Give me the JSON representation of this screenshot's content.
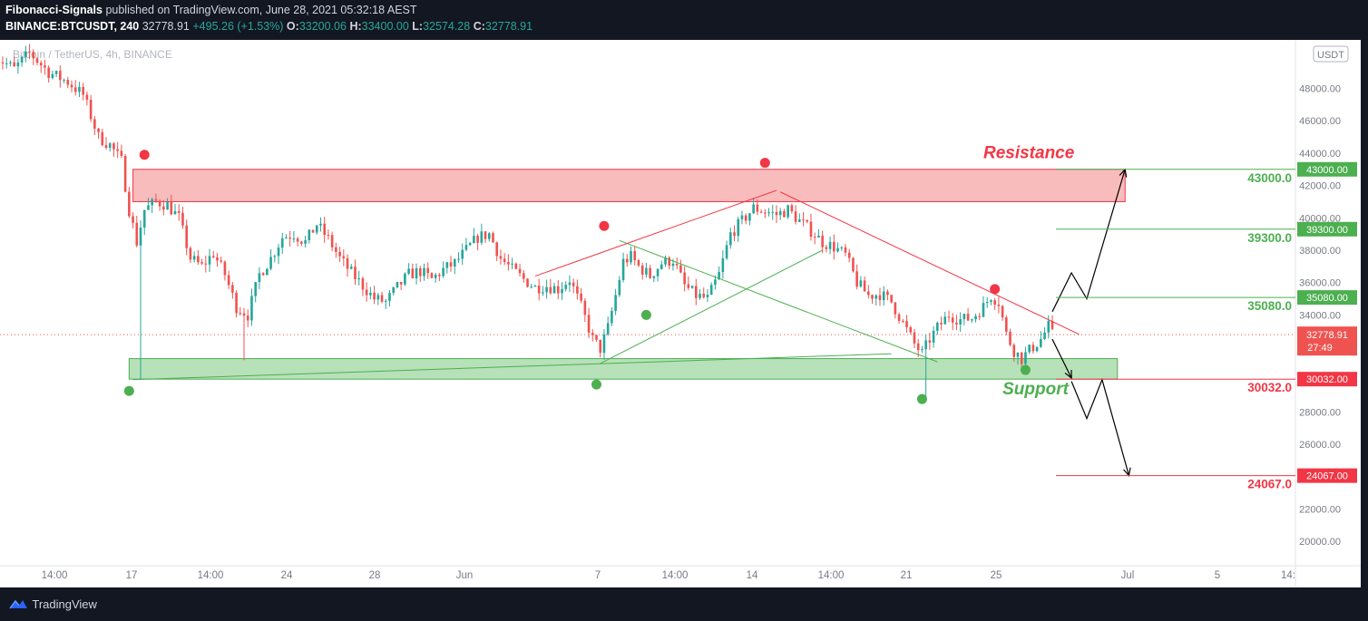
{
  "header": {
    "author": "Fibonacci-Signals",
    "published": "published on TradingView.com, June 28, 2021 05:32:18 AEST",
    "symbol": "BINANCE:BTCUSDT, 240",
    "last": "32778.91",
    "change": "+495.26 (+1.53%)",
    "o_label": "O:",
    "o": "33200.06",
    "h_label": "H:",
    "h": "33400.00",
    "l_label": "L:",
    "l": "32574.28",
    "c_label": "C:",
    "c": "32778.91"
  },
  "watermark": "Bitcoin / TetherUS, 4h, BINANCE",
  "footer": {
    "brand": "TradingView"
  },
  "colors": {
    "background": "#ffffff",
    "up": "#26a69a",
    "down": "#ef5350",
    "support": "#4caf50",
    "resistance": "#f23645",
    "resistance_zone": "#f8bcbc",
    "support_zone": "#b7e1b9"
  },
  "chart_data": {
    "type": "candlestick",
    "timeframe": "4h",
    "currency": "USDT",
    "ylim": [
      18500,
      51000
    ],
    "y_ticks": [
      "48000.00",
      "46000.00",
      "44000.00",
      "42000.00",
      "40000.00",
      "38000.00",
      "36000.00",
      "34000.00",
      "28000.00",
      "26000.00",
      "22000.00",
      "20000.00"
    ],
    "x_ticks": [
      "14:00",
      "17",
      "14:00",
      "24",
      "28",
      "Jun",
      "7",
      "14:00",
      "14",
      "14:00",
      "21",
      "25",
      "Jul",
      "5",
      "14:"
    ],
    "current_price": {
      "value": 32778.91,
      "label": "32778.91",
      "countdown": "27:49"
    },
    "zones": [
      {
        "name": "Resistance",
        "from": 41000,
        "to": 43000
      },
      {
        "name": "Support",
        "from": 30032,
        "to": 31300
      }
    ],
    "levels": [
      {
        "value": 43000,
        "label": "43000.0",
        "tag": "43000.00",
        "side": "up"
      },
      {
        "value": 39300,
        "label": "39300.0",
        "tag": "39300.00",
        "side": "up"
      },
      {
        "value": 35080,
        "label": "35080.0",
        "tag": "35080.00",
        "side": "up"
      },
      {
        "value": 30032,
        "label": "30032.0",
        "tag": "30032.00",
        "side": "down"
      },
      {
        "value": 24067,
        "label": "24067.0",
        "tag": "24067.00",
        "side": "down"
      }
    ],
    "annotations": [
      {
        "text": "Resistance",
        "color": "resistance"
      },
      {
        "text": "Support",
        "color": "support"
      }
    ],
    "scenario_up": [
      {
        "time": "Jun 28 00:00",
        "price": 34200
      },
      {
        "time": "Jun 28 20:00",
        "price": 36600
      },
      {
        "time": "Jun 29 12:00",
        "price": 35000
      },
      {
        "time": "Jul 1 04:00",
        "price": 43000
      }
    ],
    "scenario_down": [
      {
        "time": "Jun 28 00:00",
        "price": 32500
      },
      {
        "time": "Jun 28 20:00",
        "price": 29900
      },
      {
        "time": "Jun 29 12:00",
        "price": 27600
      },
      {
        "time": "Jun 30 04:00",
        "price": 30000
      },
      {
        "time": "Jul 1 08:00",
        "price": 24067
      }
    ],
    "trendlines": [
      {
        "color": "support",
        "from": {
          "time": "May 19 00:00",
          "price": 30000
        },
        "to": {
          "time": "Jun 21 00:00",
          "price": 31600
        }
      },
      {
        "color": "support",
        "from": {
          "time": "Jun 8 08:00",
          "price": 31000
        },
        "to": {
          "time": "Jun 18 00:00",
          "price": 38000
        }
      },
      {
        "color": "support",
        "from": {
          "time": "Jun 9 04:00",
          "price": 38600
        },
        "to": {
          "time": "Jun 23 00:00",
          "price": 31100
        }
      },
      {
        "color": "resistance",
        "from": {
          "time": "Jun 5 12:00",
          "price": 36400
        },
        "to": {
          "time": "Jun 16 00:00",
          "price": 41700
        }
      },
      {
        "color": "resistance",
        "from": {
          "time": "Jun 16 04:00",
          "price": 41600
        },
        "to": {
          "time": "Jun 29 04:00",
          "price": 32800
        }
      }
    ],
    "pivot_highs": [
      {
        "time": "May 19 12:00",
        "price": 43900
      },
      {
        "time": "Jun 8 12:00",
        "price": 39500
      },
      {
        "time": "Jun 15 12:00",
        "price": 43400
      },
      {
        "time": "Jun 25 12:00",
        "price": 35600
      }
    ],
    "pivot_lows": [
      {
        "time": "May 18 20:00",
        "price": 29300
      },
      {
        "time": "Jun 8 04:00",
        "price": 29700
      },
      {
        "time": "Jun 10 08:00",
        "price": 34000
      },
      {
        "time": "Jun 22 08:00",
        "price": 28800
      },
      {
        "time": "Jun 26 20:00",
        "price": 30600
      }
    ],
    "path": [
      {
        "time": "May 13 00:00",
        "price": 50000
      },
      {
        "time": "May 13 20:00",
        "price": 49200
      },
      {
        "time": "May 14 12:00",
        "price": 50200
      },
      {
        "time": "May 15 08:00",
        "price": 49000
      },
      {
        "time": "May 16 04:00",
        "price": 48400
      },
      {
        "time": "May 16 20:00",
        "price": 47600
      },
      {
        "time": "May 17 12:00",
        "price": 45000
      },
      {
        "time": "May 18 00:00",
        "price": 44500
      },
      {
        "time": "May 18 12:00",
        "price": 43500
      },
      {
        "time": "May 18 20:00",
        "price": 40500
      },
      {
        "time": "May 19 04:00",
        "price": 38500
      },
      {
        "time": "May 19 12:00",
        "price": 40500
      },
      {
        "time": "May 20 00:00",
        "price": 41000
      },
      {
        "time": "May 20 12:00",
        "price": 40800
      },
      {
        "time": "May 21 00:00",
        "price": 40000
      },
      {
        "time": "May 21 12:00",
        "price": 37500
      },
      {
        "time": "May 22 00:00",
        "price": 37000
      },
      {
        "time": "May 22 12:00",
        "price": 37800
      },
      {
        "time": "May 23 00:00",
        "price": 36500
      },
      {
        "time": "May 23 12:00",
        "price": 34500
      },
      {
        "time": "May 24 00:00",
        "price": 34000
      },
      {
        "time": "May 24 12:00",
        "price": 36500
      },
      {
        "time": "May 25 00:00",
        "price": 37500
      },
      {
        "time": "May 25 12:00",
        "price": 38800
      },
      {
        "time": "May 26 00:00",
        "price": 39000
      },
      {
        "time": "May 26 12:00",
        "price": 38500
      },
      {
        "time": "May 27 00:00",
        "price": 39600
      },
      {
        "time": "May 27 12:00",
        "price": 38700
      },
      {
        "time": "May 28 00:00",
        "price": 37500
      },
      {
        "time": "May 28 12:00",
        "price": 36600
      },
      {
        "time": "May 29 00:00",
        "price": 35800
      },
      {
        "time": "May 29 12:00",
        "price": 35000
      },
      {
        "time": "May 30 00:00",
        "price": 34800
      },
      {
        "time": "May 30 12:00",
        "price": 35700
      },
      {
        "time": "May 31 00:00",
        "price": 36500
      },
      {
        "time": "May 31 12:00",
        "price": 36700
      },
      {
        "time": "Jun 1 00:00",
        "price": 36200
      },
      {
        "time": "Jun 1 12:00",
        "price": 36800
      },
      {
        "time": "Jun 2 00:00",
        "price": 37200
      },
      {
        "time": "Jun 2 12:00",
        "price": 38000
      },
      {
        "time": "Jun 3 00:00",
        "price": 38800
      },
      {
        "time": "Jun 3 12:00",
        "price": 39000
      },
      {
        "time": "Jun 4 00:00",
        "price": 37500
      },
      {
        "time": "Jun 4 12:00",
        "price": 36800
      },
      {
        "time": "Jun 5 00:00",
        "price": 36200
      },
      {
        "time": "Jun 5 12:00",
        "price": 35700
      },
      {
        "time": "Jun 6 00:00",
        "price": 35800
      },
      {
        "time": "Jun 6 12:00",
        "price": 35600
      },
      {
        "time": "Jun 7 00:00",
        "price": 36200
      },
      {
        "time": "Jun 7 12:00",
        "price": 34500
      },
      {
        "time": "Jun 8 00:00",
        "price": 32500
      },
      {
        "time": "Jun 8 08:00",
        "price": 31900
      },
      {
        "time": "Jun 8 16:00",
        "price": 33200
      },
      {
        "time": "Jun 9 00:00",
        "price": 35200
      },
      {
        "time": "Jun 9 08:00",
        "price": 37300
      },
      {
        "time": "Jun 9 16:00",
        "price": 37600
      },
      {
        "time": "Jun 10 00:00",
        "price": 37000
      },
      {
        "time": "Jun 10 12:00",
        "price": 36400
      },
      {
        "time": "Jun 11 00:00",
        "price": 37200
      },
      {
        "time": "Jun 11 12:00",
        "price": 37400
      },
      {
        "time": "Jun 12 00:00",
        "price": 35800
      },
      {
        "time": "Jun 12 12:00",
        "price": 35200
      },
      {
        "time": "Jun 13 00:00",
        "price": 35000
      },
      {
        "time": "Jun 13 12:00",
        "price": 36500
      },
      {
        "time": "Jun 14 00:00",
        "price": 39000
      },
      {
        "time": "Jun 14 12:00",
        "price": 39800
      },
      {
        "time": "Jun 15 00:00",
        "price": 40600
      },
      {
        "time": "Jun 15 12:00",
        "price": 40400
      },
      {
        "time": "Jun 16 00:00",
        "price": 40200
      },
      {
        "time": "Jun 16 12:00",
        "price": 40500
      },
      {
        "time": "Jun 17 00:00",
        "price": 39800
      },
      {
        "time": "Jun 17 12:00",
        "price": 39200
      },
      {
        "time": "Jun 18 00:00",
        "price": 38500
      },
      {
        "time": "Jun 18 12:00",
        "price": 38200
      },
      {
        "time": "Jun 19 00:00",
        "price": 37700
      },
      {
        "time": "Jun 19 12:00",
        "price": 36000
      },
      {
        "time": "Jun 20 00:00",
        "price": 35200
      },
      {
        "time": "Jun 20 12:00",
        "price": 35300
      },
      {
        "time": "Jun 21 00:00",
        "price": 34800
      },
      {
        "time": "Jun 21 12:00",
        "price": 33500
      },
      {
        "time": "Jun 22 00:00",
        "price": 32200
      },
      {
        "time": "Jun 22 08:00",
        "price": 31600
      },
      {
        "time": "Jun 22 16:00",
        "price": 32500
      },
      {
        "time": "Jun 23 00:00",
        "price": 33200
      },
      {
        "time": "Jun 23 12:00",
        "price": 34000
      },
      {
        "time": "Jun 24 00:00",
        "price": 33700
      },
      {
        "time": "Jun 24 12:00",
        "price": 33800
      },
      {
        "time": "Jun 25 00:00",
        "price": 34500
      },
      {
        "time": "Jun 25 08:00",
        "price": 35200
      },
      {
        "time": "Jun 25 16:00",
        "price": 34800
      },
      {
        "time": "Jun 26 00:00",
        "price": 32800
      },
      {
        "time": "Jun 26 08:00",
        "price": 31800
      },
      {
        "time": "Jun 26 16:00",
        "price": 31300
      },
      {
        "time": "Jun 27 00:00",
        "price": 31800
      },
      {
        "time": "Jun 27 12:00",
        "price": 32500
      },
      {
        "time": "Jun 27 20:00",
        "price": 33300
      },
      {
        "time": "Jun 28 00:00",
        "price": 32780
      }
    ]
  }
}
